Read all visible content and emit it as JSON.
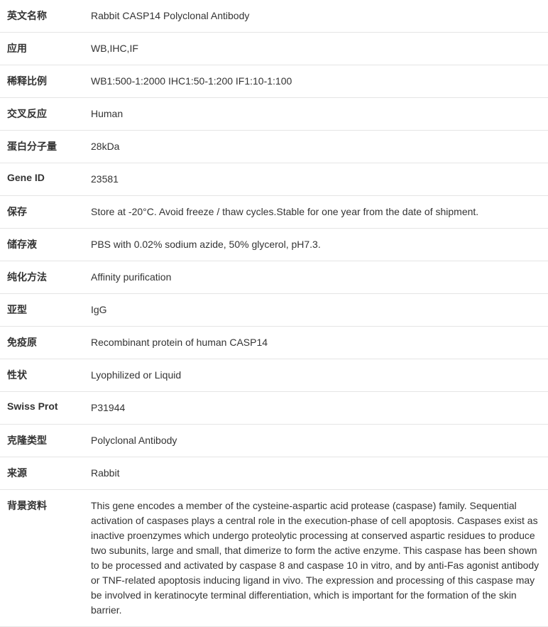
{
  "table": {
    "border_color": "#e5e5e5",
    "label_font_weight": "bold",
    "text_color": "#333333",
    "background_color": "#ffffff",
    "font_size": 14,
    "label_width": 120,
    "rows": [
      {
        "label": "英文名称",
        "value": "Rabbit CASP14 Polyclonal Antibody"
      },
      {
        "label": "应用",
        "value": "WB,IHC,IF"
      },
      {
        "label": "稀释比例",
        "value": "WB1:500-1:2000 IHC1:50-1:200 IF1:10-1:100"
      },
      {
        "label": "交叉反应",
        "value": "Human"
      },
      {
        "label": "蛋白分子量",
        "value": "28kDa"
      },
      {
        "label": "Gene ID",
        "value": "23581"
      },
      {
        "label": "保存",
        "value": "Store at -20°C. Avoid freeze / thaw cycles.Stable for one year from the date of shipment."
      },
      {
        "label": "储存液",
        "value": "PBS with 0.02% sodium azide, 50% glycerol, pH7.3."
      },
      {
        "label": "纯化方法",
        "value": "Affinity purification"
      },
      {
        "label": "亚型",
        "value": "IgG"
      },
      {
        "label": "免疫原",
        "value": "Recombinant protein of human CASP14"
      },
      {
        "label": "性状",
        "value": "Lyophilized or Liquid"
      },
      {
        "label": "Swiss Prot",
        "value": "P31944"
      },
      {
        "label": "克隆类型",
        "value": "Polyclonal Antibody"
      },
      {
        "label": "来源",
        "value": "Rabbit"
      },
      {
        "label": "背景资料",
        "value": "This gene encodes a member of the cysteine-aspartic acid protease (caspase) family. Sequential activation of caspases plays a central role in the execution-phase of cell apoptosis. Caspases exist as inactive proenzymes which undergo proteolytic processing at conserved aspartic residues to produce two subunits, large and small, that dimerize to form the active enzyme. This caspase has been shown to be processed and activated by caspase 8 and caspase 10 in vitro, and by anti-Fas agonist antibody or TNF-related apoptosis inducing ligand in vivo. The expression and processing of this caspase may be involved in keratinocyte terminal differentiation, which is important for the formation of the skin barrier."
      }
    ]
  }
}
